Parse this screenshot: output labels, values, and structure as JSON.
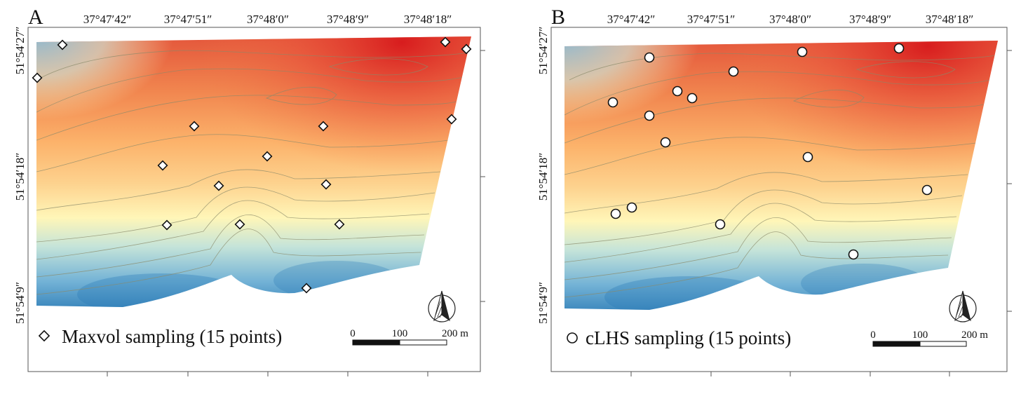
{
  "colors": {
    "ramp": [
      "#2c7bb6",
      "#5a9fcc",
      "#abd9e9",
      "#ffffbf",
      "#fdc77f",
      "#fdae61",
      "#f07c4a",
      "#e34a33",
      "#d7191c"
    ],
    "frame": "#555555",
    "contour": "#8a8a6a",
    "marker_fill": "#ffffff",
    "marker_stroke": "#111111"
  },
  "panels": [
    {
      "letter": "A",
      "lon_ticks": [
        "37°47′42″",
        "37°47′51″",
        "37°48′0″",
        "37°48′9″",
        "37°48′18″"
      ],
      "lat_ticks": [
        "51°54′27″",
        "51°54′18″",
        "51°54′9″"
      ],
      "legend_label": "Maxvol sampling (15 points)",
      "legend_symbol": "diamond",
      "scale_labels": [
        "0",
        "100",
        "200 m"
      ],
      "north_arrow": "north-arrow-icon",
      "sample_points": [
        {
          "lon": "37°47′33″",
          "lat": "51°54′27″"
        },
        {
          "lon": "37°47′29″",
          "lat": "51°54′24″"
        },
        {
          "lon": "37°48′20″",
          "lat": "51°54′27″"
        },
        {
          "lon": "37°48′22″",
          "lat": "51°54′26″"
        },
        {
          "lon": "37°48′21″",
          "lat": "51°54′22″"
        },
        {
          "lon": "37°47′47″",
          "lat": "51°54′21″"
        },
        {
          "lon": "37°48′7″",
          "lat": "51°54′21″"
        },
        {
          "lon": "37°47′44″",
          "lat": "51°54′18″"
        },
        {
          "lon": "37°48′0″",
          "lat": "51°54′19″"
        },
        {
          "lon": "37°47′50″",
          "lat": "51°54′17″"
        },
        {
          "lon": "37°48′7″",
          "lat": "51°54′17″"
        },
        {
          "lon": "37°47′44″",
          "lat": "51°54′14″"
        },
        {
          "lon": "37°47′52″",
          "lat": "51°54′14″"
        },
        {
          "lon": "37°48′9″",
          "lat": "51°54′14″"
        },
        {
          "lon": "37°48′5″",
          "lat": "51°54′9″"
        }
      ]
    },
    {
      "letter": "B",
      "lon_ticks": [
        "37°47′42″",
        "37°47′51″",
        "37°48′0″",
        "37°48′9″",
        "37°48′18″"
      ],
      "lat_ticks": [
        "51°54′27″",
        "51°54′18″",
        "51°54′9″"
      ],
      "legend_label": "cLHS sampling (15 points)",
      "legend_symbol": "circle",
      "scale_labels": [
        "0",
        "100",
        "200 m"
      ],
      "north_arrow": "north-arrow-icon",
      "sample_points": [
        {
          "lon": "37°47′42″",
          "lat": "51°54′26″"
        },
        {
          "lon": "37°48′1″",
          "lat": "51°54′27″"
        },
        {
          "lon": "37°48′12″",
          "lat": "51°54′27″"
        },
        {
          "lon": "37°47′52″",
          "lat": "51°54′25″"
        },
        {
          "lon": "37°47′45″",
          "lat": "51°54′24″"
        },
        {
          "lon": "37°47′47″",
          "lat": "51°54′23″"
        },
        {
          "lon": "37°47′38″",
          "lat": "51°54′22″"
        },
        {
          "lon": "37°47′42″",
          "lat": "51°54′21″"
        },
        {
          "lon": "37°47′44″",
          "lat": "51°54′19″"
        },
        {
          "lon": "37°48′2″",
          "lat": "51°54′18″"
        },
        {
          "lon": "37°48′16″",
          "lat": "51°54′16″"
        },
        {
          "lon": "37°47′40″",
          "lat": "51°54′15″"
        },
        {
          "lon": "37°47′38″",
          "lat": "51°54′14″"
        },
        {
          "lon": "37°47′51″",
          "lat": "51°54′14″"
        },
        {
          "lon": "37°48′7″",
          "lat": "51°54′11″"
        }
      ]
    }
  ]
}
